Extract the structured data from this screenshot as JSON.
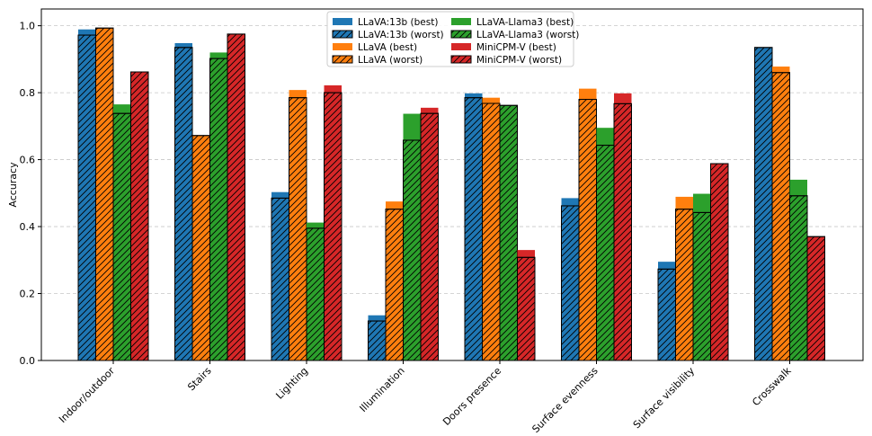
{
  "chart_data": {
    "type": "bar",
    "title": "",
    "xlabel": "",
    "ylabel": "Accuracy",
    "ylim": [
      0,
      1.05
    ],
    "yticks": [
      "0.0",
      "0.2",
      "0.4",
      "0.6",
      "0.8",
      "1.0"
    ],
    "grid": "horizontal dashed",
    "legend_position": "top-center",
    "categories": [
      "Indoor/outdoor",
      "Stairs",
      "Lighting",
      "Illumination",
      "Doors presence",
      "Surface evenness",
      "Surface visibility",
      "Crosswalk"
    ],
    "series": [
      {
        "name": "LLaVA:13b (best)",
        "model": "LLaVA:13b",
        "variant": "best",
        "color": "#1f77b4",
        "values": [
          0.989,
          0.948,
          0.503,
          0.135,
          0.798,
          0.485,
          0.295,
          0.935
        ]
      },
      {
        "name": "LLaVA:13b (worst)",
        "model": "LLaVA:13b",
        "variant": "worst",
        "color": "#1f77b4",
        "values": [
          0.972,
          0.935,
          0.485,
          0.118,
          0.785,
          0.462,
          0.273,
          0.935
        ]
      },
      {
        "name": "LLaVA (best)",
        "model": "LLaVA",
        "variant": "best",
        "color": "#ff7f0e",
        "values": [
          0.993,
          0.672,
          0.808,
          0.475,
          0.785,
          0.812,
          0.489,
          0.878
        ]
      },
      {
        "name": "LLaVA (worst)",
        "model": "LLaVA",
        "variant": "worst",
        "color": "#ff7f0e",
        "values": [
          0.993,
          0.672,
          0.785,
          0.452,
          0.768,
          0.78,
          0.452,
          0.86
        ]
      },
      {
        "name": "LLaVA-Llama3 (best)",
        "model": "LLaVA-Llama3",
        "variant": "best",
        "color": "#2ca02c",
        "values": [
          0.765,
          0.92,
          0.412,
          0.737,
          0.762,
          0.695,
          0.498,
          0.54
        ]
      },
      {
        "name": "LLaVA-Llama3 (worst)",
        "model": "LLaVA-Llama3",
        "variant": "worst",
        "color": "#2ca02c",
        "values": [
          0.738,
          0.902,
          0.395,
          0.658,
          0.762,
          0.643,
          0.442,
          0.492
        ]
      },
      {
        "name": "MiniCPM-V (best)",
        "model": "MiniCPM-V",
        "variant": "best",
        "color": "#d62728",
        "values": [
          0.862,
          0.975,
          0.822,
          0.755,
          0.33,
          0.798,
          0.588,
          0.37
        ]
      },
      {
        "name": "MiniCPM-V (worst)",
        "model": "MiniCPM-V",
        "variant": "worst",
        "color": "#d62728",
        "values": [
          0.862,
          0.975,
          0.8,
          0.738,
          0.308,
          0.767,
          0.588,
          0.37
        ]
      }
    ]
  }
}
